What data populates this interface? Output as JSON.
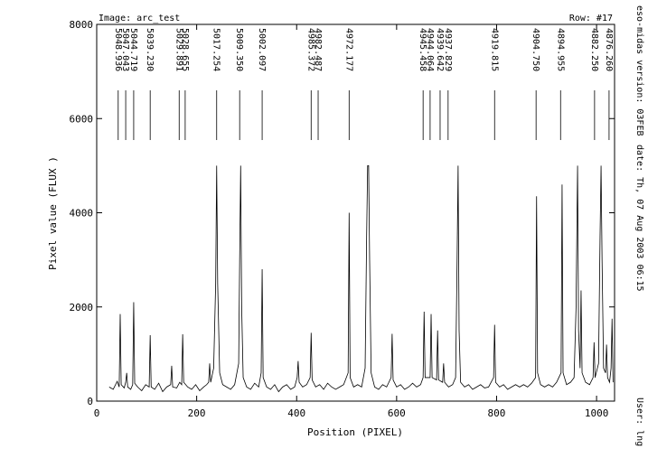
{
  "chart_data": {
    "type": "line",
    "header_left": "Image: arc_test",
    "header_right": "Row: #17",
    "xlabel": "Position (PIXEL)",
    "ylabel": "Pixel value (FLUX )",
    "side_version": "eso-midas version: 03FEB",
    "side_date": "date: Th, 07 Aug 2003 06:15",
    "side_user": "User: lng",
    "xlim": [
      0,
      1036
    ],
    "ylim": [
      0,
      8000
    ],
    "xticks": [
      0,
      200,
      400,
      600,
      800,
      1000
    ],
    "yticks": [
      0,
      2000,
      4000,
      6000,
      8000
    ],
    "x": [
      25,
      33,
      41,
      45,
      47,
      49,
      55,
      58,
      60,
      62,
      68,
      72,
      74,
      76,
      82,
      90,
      98,
      105,
      107,
      109,
      116,
      124,
      132,
      140,
      148,
      150,
      152,
      160,
      166,
      170,
      172,
      174,
      182,
      190,
      198,
      206,
      214,
      220,
      224,
      226,
      228,
      234,
      238,
      240,
      242,
      246,
      252,
      260,
      268,
      276,
      284,
      286,
      288,
      290,
      293,
      300,
      308,
      316,
      324,
      329,
      331,
      333,
      340,
      348,
      356,
      364,
      372,
      380,
      388,
      396,
      401,
      403,
      405,
      412,
      420,
      427,
      429,
      431,
      438,
      446,
      454,
      462,
      470,
      478,
      486,
      494,
      503,
      505,
      507,
      514,
      522,
      530,
      537,
      540,
      542,
      544,
      546,
      549,
      556,
      564,
      572,
      580,
      589,
      591,
      593,
      600,
      608,
      616,
      624,
      632,
      640,
      648,
      653,
      655,
      657,
      667,
      669,
      671,
      680,
      682,
      684,
      692,
      694,
      696,
      704,
      712,
      718,
      721,
      723,
      725,
      728,
      736,
      744,
      752,
      760,
      768,
      776,
      784,
      794,
      796,
      798,
      806,
      814,
      822,
      830,
      838,
      846,
      854,
      862,
      870,
      878,
      880,
      882,
      888,
      896,
      904,
      912,
      920,
      929,
      931,
      933,
      940,
      948,
      955,
      959,
      962,
      964,
      967,
      969,
      971,
      978,
      986,
      993,
      995,
      997,
      1004,
      1007,
      1009,
      1011,
      1014,
      1018,
      1020,
      1022,
      1026,
      1029,
      1031,
      1033
    ],
    "series": [
      {
        "color": "#000000",
        "values": [
          300,
          250,
          420,
          300,
          1850,
          350,
          280,
          400,
          600,
          300,
          250,
          350,
          2100,
          380,
          300,
          220,
          350,
          300,
          1400,
          300,
          250,
          380,
          200,
          300,
          350,
          750,
          300,
          280,
          400,
          350,
          1420,
          400,
          300,
          250,
          350,
          220,
          300,
          350,
          400,
          800,
          400,
          700,
          2500,
          5000,
          2500,
          600,
          350,
          300,
          250,
          350,
          800,
          3000,
          5000,
          2000,
          500,
          300,
          250,
          380,
          300,
          600,
          2800,
          500,
          300,
          250,
          350,
          200,
          300,
          350,
          250,
          300,
          500,
          850,
          400,
          300,
          350,
          500,
          1450,
          450,
          300,
          350,
          250,
          380,
          300,
          250,
          300,
          350,
          600,
          4000,
          500,
          300,
          350,
          300,
          700,
          3500,
          5000,
          5000,
          3000,
          600,
          300,
          250,
          350,
          300,
          500,
          1430,
          450,
          300,
          350,
          250,
          300,
          380,
          300,
          350,
          500,
          1900,
          500,
          500,
          1850,
          500,
          450,
          1500,
          450,
          400,
          800,
          400,
          300,
          350,
          500,
          3000,
          5000,
          1500,
          400,
          300,
          350,
          250,
          300,
          350,
          280,
          300,
          500,
          1620,
          400,
          300,
          350,
          250,
          300,
          350,
          300,
          350,
          300,
          380,
          500,
          4350,
          600,
          350,
          300,
          350,
          300,
          400,
          600,
          4600,
          600,
          350,
          400,
          500,
          2000,
          5000,
          1500,
          700,
          2350,
          600,
          400,
          350,
          500,
          1250,
          500,
          800,
          3500,
          5000,
          3000,
          700,
          600,
          1200,
          500,
          400,
          700,
          1750,
          400
        ]
      }
    ],
    "annotations": [
      {
        "label": "5048.936",
        "x": 43
      },
      {
        "label": "5047.043",
        "x": 58
      },
      {
        "label": "5044.719",
        "x": 74
      },
      {
        "label": "5039.230",
        "x": 107
      },
      {
        "label": "5029.891",
        "x": 165
      },
      {
        "label": "5028.655",
        "x": 177
      },
      {
        "label": "5017.254",
        "x": 240
      },
      {
        "label": "5009.350",
        "x": 286
      },
      {
        "label": "5002.097",
        "x": 331
      },
      {
        "label": "4985.372",
        "x": 429
      },
      {
        "label": "4982.487",
        "x": 443
      },
      {
        "label": "4972.177",
        "x": 505
      },
      {
        "label": "4945.458",
        "x": 653
      },
      {
        "label": "4944.064",
        "x": 667
      },
      {
        "label": "4939.642",
        "x": 687
      },
      {
        "label": "4937.829",
        "x": 703
      },
      {
        "label": "4919.815",
        "x": 796
      },
      {
        "label": "4904.750",
        "x": 879
      },
      {
        "label": "4894.955",
        "x": 928
      },
      {
        "label": "4882.250",
        "x": 996
      },
      {
        "label": "4876.260",
        "x": 1025
      }
    ]
  }
}
